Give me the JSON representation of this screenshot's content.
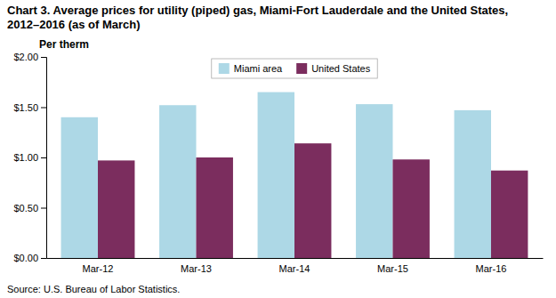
{
  "chart_data": {
    "type": "bar",
    "title": "Chart 3. Average prices for utility (piped) gas, Miami-Fort Lauderdale and the United States, 2012–2016 (as of March)",
    "ylabel": "Per therm",
    "source": "Source: U.S. Bureau of Labor Statistics.",
    "categories": [
      "Mar-12",
      "Mar-13",
      "Mar-14",
      "Mar-15",
      "Mar-16"
    ],
    "series": [
      {
        "name": "Miami area",
        "color": "#ADD8E6",
        "values": [
          1.4,
          1.52,
          1.65,
          1.53,
          1.47
        ]
      },
      {
        "name": "United States",
        "color": "#7B2D5E",
        "values": [
          0.97,
          1.0,
          1.14,
          0.98,
          0.87
        ]
      }
    ],
    "ylim": [
      0.0,
      2.0
    ],
    "yticks": [
      {
        "value": 0.0,
        "label": "$0.00"
      },
      {
        "value": 0.5,
        "label": "$0.50"
      },
      {
        "value": 1.0,
        "label": "$1.00"
      },
      {
        "value": 1.5,
        "label": "$1.50"
      },
      {
        "value": 2.0,
        "label": "$2.00"
      }
    ],
    "grid": false,
    "legend": "top"
  }
}
